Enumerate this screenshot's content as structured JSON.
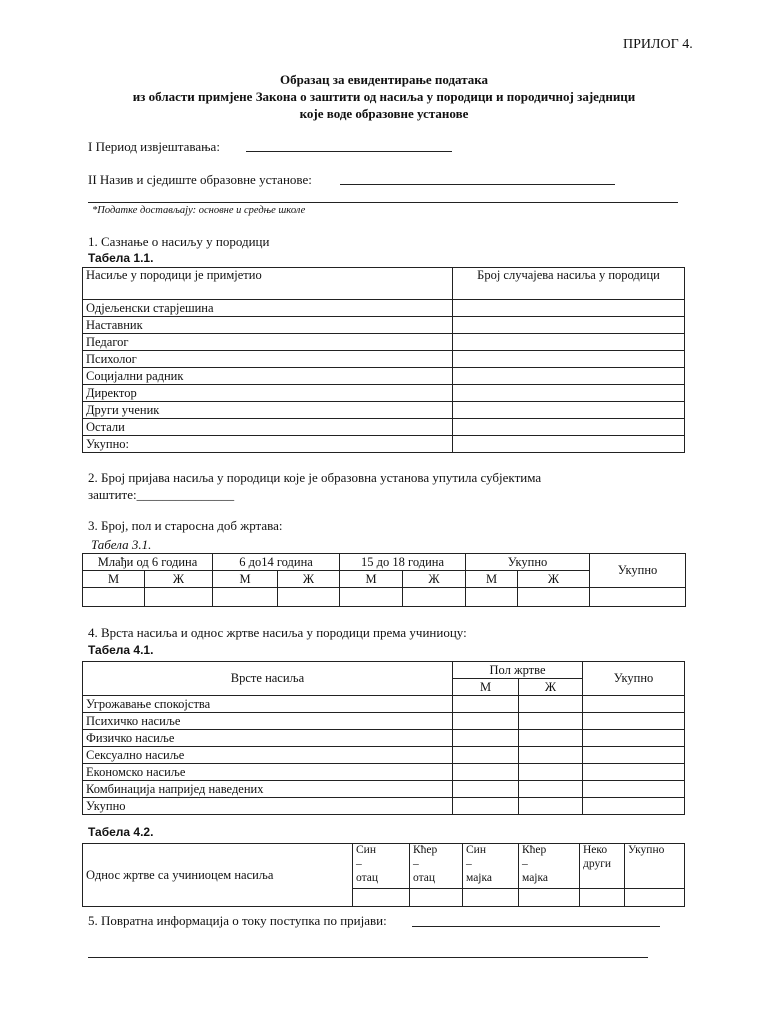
{
  "attachment": "ПРИЛОГ 4.",
  "title": {
    "line1": "Образац за евидентирање података",
    "line2": "из области примјене Закона о заштити од насиља у породици и породичној заједници",
    "line3": "које воде образовне установе"
  },
  "fields": {
    "period_label": "I    Период извјештавања:",
    "period_value": "",
    "institution_label": "II   Назив и сједиште образовне установе:",
    "institution_value": "",
    "note": "*Податке достављају:  основне и средње школе"
  },
  "section1": {
    "heading": "1. Сазнање о насиљу у породици",
    "table_label": "Табела 1.1.",
    "headers": [
      "Насиље у породици је примјетио",
      "Број случајева насиља у породици"
    ],
    "rows": [
      "Одјељенски старјешина",
      "Наставник",
      "Педагог",
      "Психолог",
      "Социјални радник",
      "Директор",
      "Други ученик",
      "Остали",
      "Укупно:"
    ]
  },
  "section2": {
    "text": "2.  Број  пријава  насиља  у  породици  које  је  образовна  установа  упутила  субјектима",
    "text2": "заштите:_______________"
  },
  "section3": {
    "heading": "3. Број, пол и старосна доб жртава:",
    "table_label": "Табела 3.1.",
    "groups": [
      "Млађи од  6 година",
      "6 до14 година",
      "15 до 18 година",
      "Укупно"
    ],
    "total": "Укупно",
    "m": "М",
    "f": "Ж"
  },
  "section4": {
    "heading": "4. Врста насиља и однос жртве насиља у породици према учиниоцу:",
    "table_label": "Табела 4.1.",
    "col_types": "Врсте  насиља",
    "col_sex": "Пол жртве",
    "m": "М",
    "f": "Ж",
    "col_total": "Укупно",
    "rows": [
      "Угрожавање спокојства",
      "Психичко насиље",
      "Физичко насиље",
      "Сексуално насиље",
      "Економско насиље",
      "Комбинација напријед наведених",
      "Укупно"
    ],
    "table2_label": "Табела 4.2.",
    "relation_label": "Однос жртве са учиниоцем насиља",
    "relations": [
      {
        "a": "Син",
        "b": "–",
        "c": "отац"
      },
      {
        "a": "Кћер",
        "b": "–",
        "c": "отац"
      },
      {
        "a": "Син",
        "b": "–",
        "c": "мајка"
      },
      {
        "a": "Кћер",
        "b": "–",
        "c": "мајка"
      },
      {
        "a": "Неко",
        "b": "други",
        "c": ""
      },
      {
        "a": "Укупно",
        "b": "",
        "c": ""
      }
    ]
  },
  "section5": {
    "text": "5. Повратна информација о току поступка по пријави:",
    "value": ""
  }
}
